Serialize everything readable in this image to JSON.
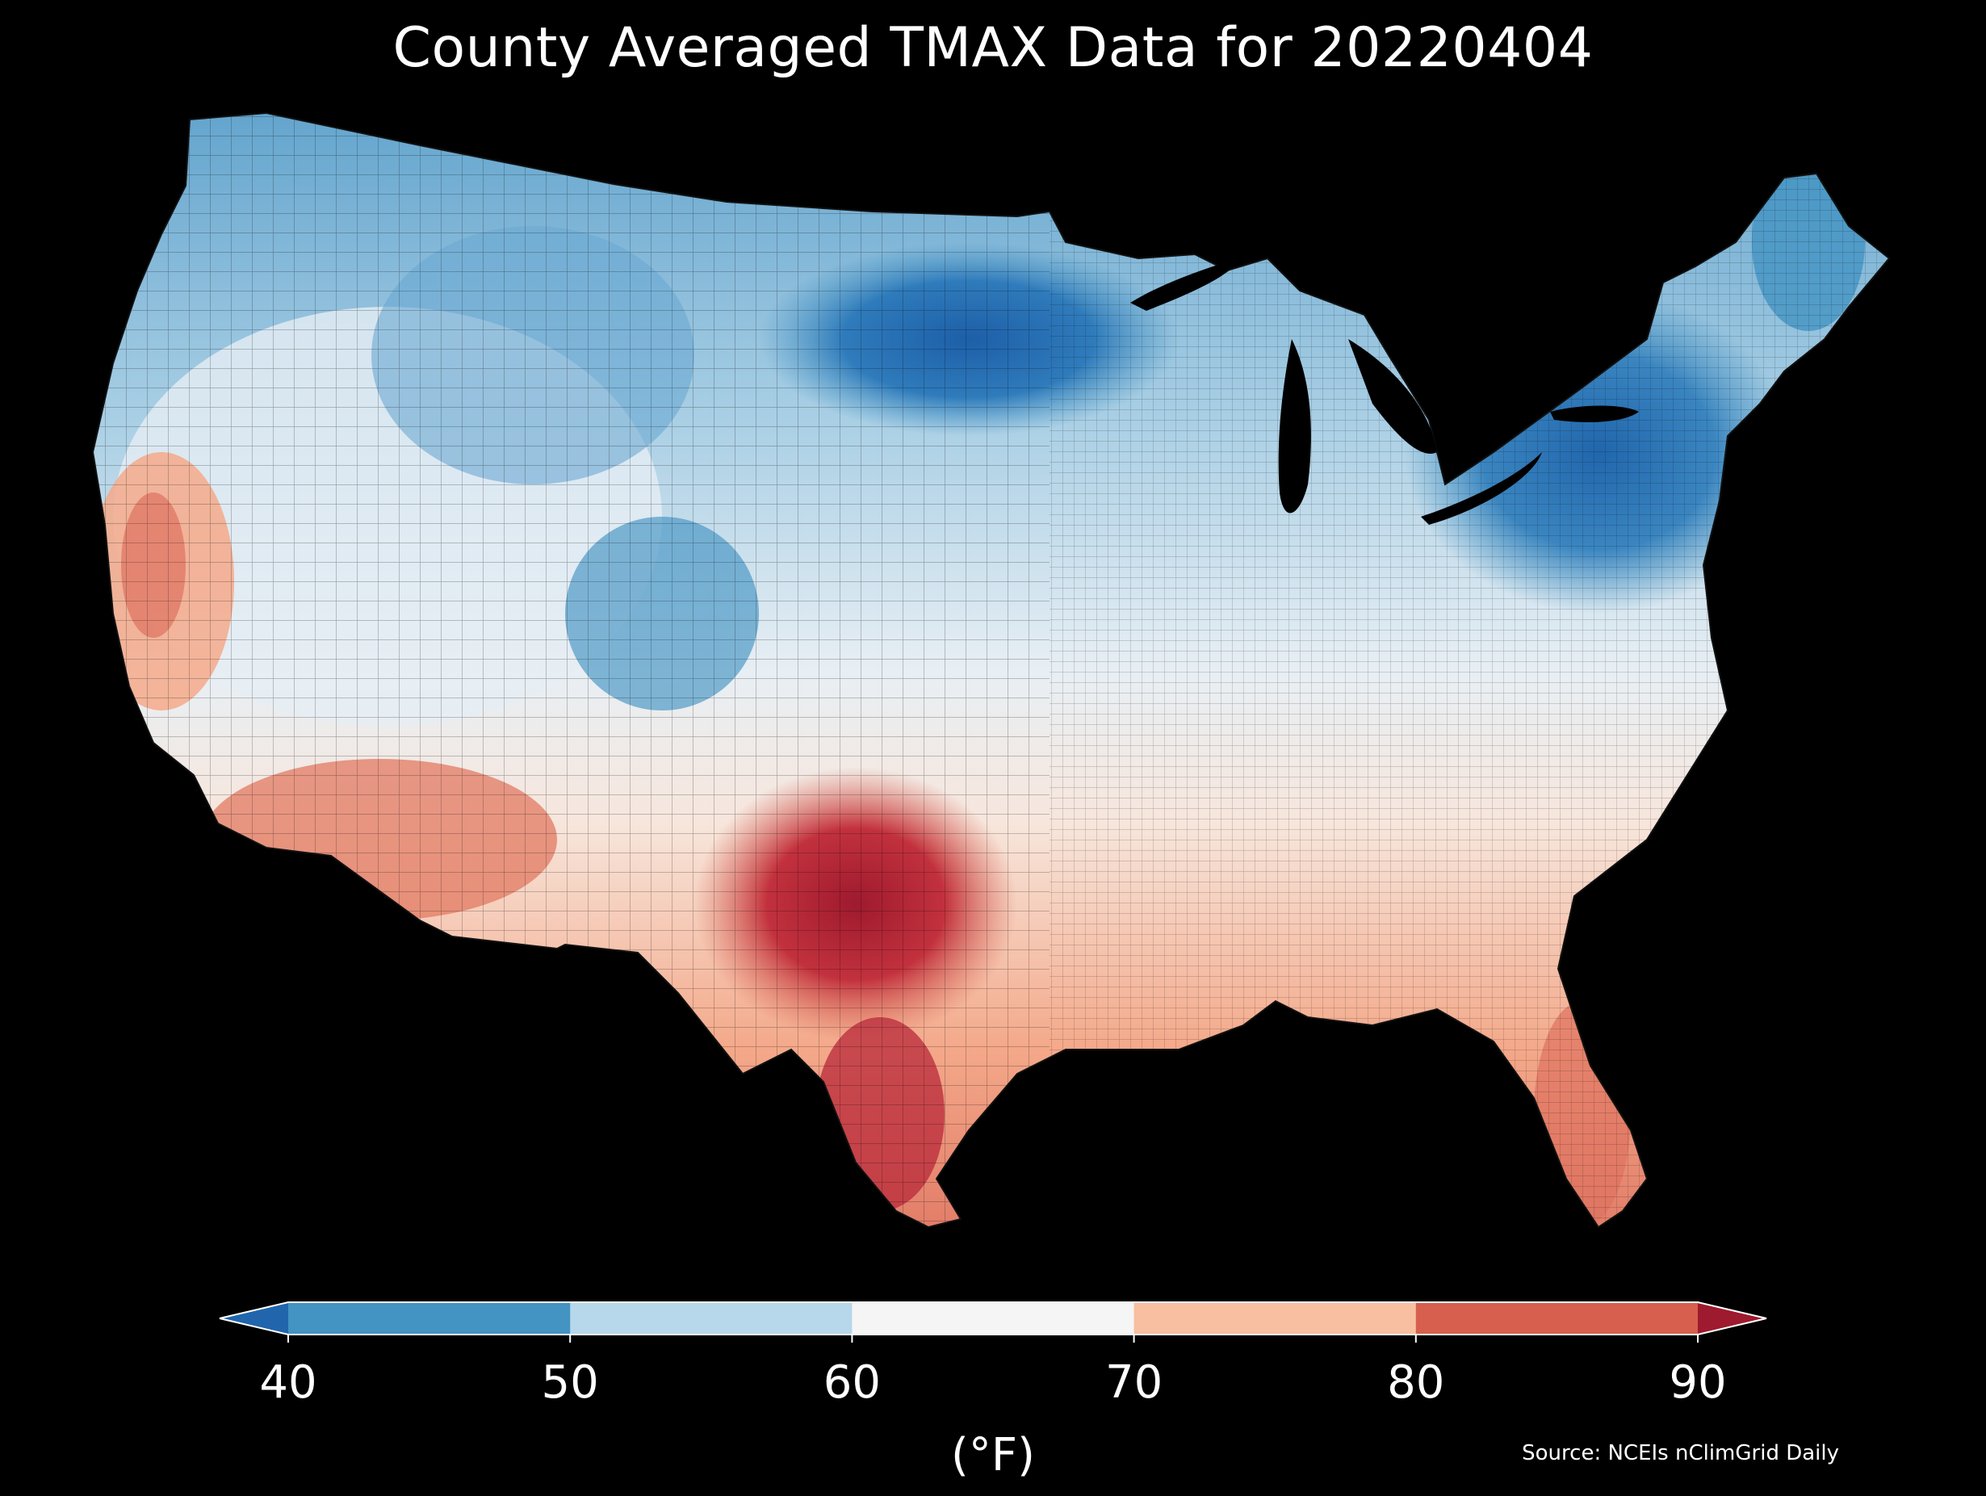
{
  "title": "County Averaged TMAX Data for 20220404",
  "colorbar": {
    "ticks": [
      "40",
      "50",
      "60",
      "70",
      "80",
      "90"
    ],
    "bins": [
      {
        "range": "<40",
        "color": "#2166ac"
      },
      {
        "range": "40-50",
        "color": "#4393c3"
      },
      {
        "range": "50-60",
        "color": "#b7d7ea"
      },
      {
        "range": "60-70",
        "color": "#f5f5f5"
      },
      {
        "range": "70-80",
        "color": "#f8bfa1"
      },
      {
        "range": "80-90",
        "color": "#d6604d"
      },
      {
        "range": ">90",
        "color": "#9e1a2e"
      }
    ],
    "unit": "(°F)",
    "extend": "both"
  },
  "source": "Source: NCEIs nClimGrid Daily",
  "map": {
    "region": "Contiguous United States",
    "variable": "TMAX",
    "palette": [
      "#2166ac",
      "#4393c3",
      "#b7d7ea",
      "#f5f5f5",
      "#f8bfa1",
      "#d6604d",
      "#9e1a2e"
    ]
  }
}
